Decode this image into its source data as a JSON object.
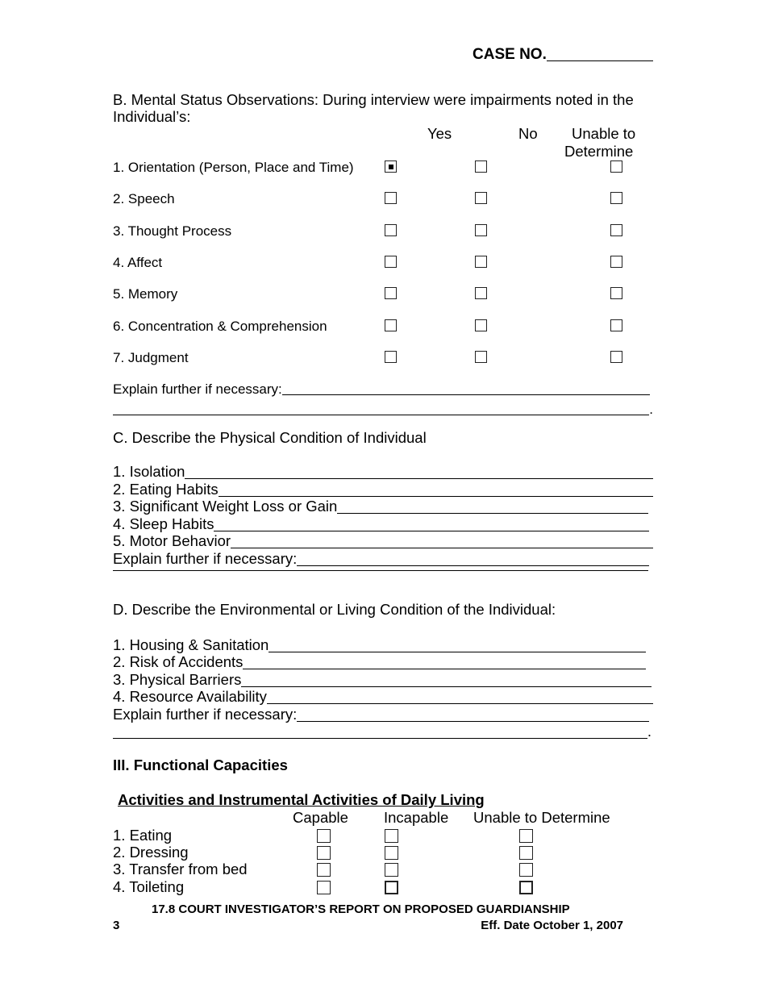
{
  "header": {
    "case_no_label": "CASE NO."
  },
  "section_b": {
    "title_line1": "B.  Mental Status Observations: During interview were impairments noted in the",
    "title_line2": "Individual’s:",
    "columns": [
      "Yes",
      "No",
      "Unable to",
      "Determine"
    ],
    "items": [
      {
        "label": "1. Orientation (Person, Place and Time)",
        "yes": true,
        "no": false,
        "unable": false
      },
      {
        "label": "2. Speech",
        "yes": false,
        "no": false,
        "unable": false
      },
      {
        "label": "3. Thought Process",
        "yes": false,
        "no": false,
        "unable": false
      },
      {
        "label": "4. Affect",
        "yes": false,
        "no": false,
        "unable": false
      },
      {
        "label": "5. Memory",
        "yes": false,
        "no": false,
        "unable": false
      },
      {
        "label": "6. Concentration & Comprehension",
        "yes": false,
        "no": false,
        "unable": false
      },
      {
        "label": "7. Judgment",
        "yes": false,
        "no": false,
        "unable": false
      }
    ],
    "explain_label": "Explain further if necessary:",
    "period": "."
  },
  "section_c": {
    "title": "C. Describe the Physical Condition of Individual",
    "items": [
      "1. Isolation",
      "2. Eating Habits",
      "3. Significant Weight Loss or Gain",
      "4. Sleep Habits",
      "5. Motor Behavior ",
      "Explain further if necessary:"
    ]
  },
  "section_d": {
    "title": "D.  Describe the Environmental or Living Condition of the Individual:",
    "items": [
      "1. Housing & Sanitation",
      "2. Risk of Accidents",
      "3. Physical Barriers",
      "4. Resource Availability",
      "Explain further if necessary:"
    ],
    "period": "."
  },
  "section_iii": {
    "title": "III. Functional Capacities",
    "subtitle": "Activities and Instrumental Activities of Daily Living",
    "columns": [
      "Capable",
      "Incapable",
      "Unable to Determine"
    ],
    "items": [
      "1. Eating",
      "2. Dressing",
      "3. Transfer from bed",
      "4. Toileting"
    ]
  },
  "footer": {
    "title": "17.8 COURT INVESTIGATOR’S REPORT ON PROPOSED GUARDIANSHIP",
    "page_number": "3",
    "eff_date": "Eff. Date October 1, 2007"
  }
}
